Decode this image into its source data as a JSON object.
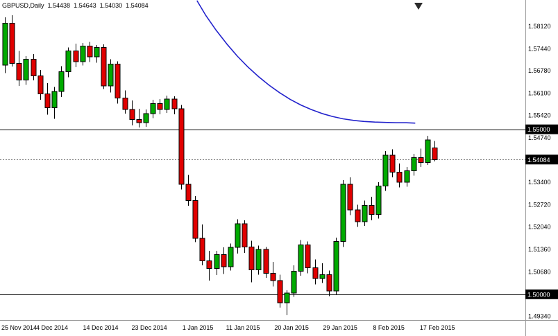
{
  "header": {
    "symbol_period": "GBPUSD,Daily",
    "open": "1.54438",
    "high": "1.54643",
    "low": "1.54030",
    "close": "1.54084"
  },
  "colors": {
    "up_candle": "#00AA00",
    "down_candle": "#E00000",
    "candle_border": "#000000",
    "moving_average": "#2222CC",
    "horizontal_line": "#000000",
    "current_price_line": "#808080",
    "badge_bg": "#000000",
    "badge_fg": "#FFFFFF",
    "axis_text": "#000000",
    "frame": "#9a9a9a",
    "background": "#FFFFFF"
  },
  "chart_data": {
    "type": "candlestick",
    "symbol": "GBPUSD",
    "timeframe": "Daily",
    "title": "GBPUSD,Daily",
    "grid": "off",
    "ylim": [
      1.4922,
      1.5892
    ],
    "y_axis_labels": [
      "1.58120",
      "1.57440",
      "1.56780",
      "1.56100",
      "1.55420",
      "1.54740",
      "1.54060",
      "1.53400",
      "1.52720",
      "1.52040",
      "1.51360",
      "1.50680",
      "1.50000",
      "1.49340"
    ],
    "x_axis_labels": [
      {
        "text": "25 Nov 2014",
        "i": 0
      },
      {
        "text": "4 Dec 2014",
        "i": 6.7
      },
      {
        "text": "14 Dec 2014",
        "i": 13.6
      },
      {
        "text": "23 Dec 2014",
        "i": 20.5
      },
      {
        "text": "1 Jan 2015",
        "i": 27.4
      },
      {
        "text": "11 Jan 2015",
        "i": 33.8
      },
      {
        "text": "20 Jan 2015",
        "i": 40.7
      },
      {
        "text": "29 Jan 2015",
        "i": 47.6
      },
      {
        "text": "8 Feb 2015",
        "i": 54.5
      },
      {
        "text": "17 Feb 2015",
        "i": 61.4
      }
    ],
    "horizontal_lines": [
      {
        "price": 1.55,
        "label": "1.55000"
      },
      {
        "price": 1.5,
        "label": "1.50000"
      }
    ],
    "current_price_line": {
      "price": 1.54084,
      "label": "1.54084"
    },
    "quote": {
      "open": 1.54438,
      "high": 1.54643,
      "low": 1.5403,
      "close": 1.54084
    },
    "moving_average": {
      "points": [
        [
          27.3,
          1.5889
        ],
        [
          28.5,
          1.5846
        ],
        [
          30,
          1.58
        ],
        [
          31.5,
          1.5759
        ],
        [
          33,
          1.5722
        ],
        [
          34.5,
          1.5689
        ],
        [
          36,
          1.566
        ],
        [
          37.5,
          1.5634
        ],
        [
          39,
          1.5611
        ],
        [
          40.5,
          1.5591
        ],
        [
          42,
          1.5574
        ],
        [
          43.5,
          1.556
        ],
        [
          45,
          1.5548
        ],
        [
          46.5,
          1.5539
        ],
        [
          48,
          1.5532
        ],
        [
          49.5,
          1.5527
        ],
        [
          51,
          1.5524
        ],
        [
          52.5,
          1.5522
        ],
        [
          54,
          1.5521
        ],
        [
          55.5,
          1.552
        ],
        [
          57,
          1.552
        ],
        [
          58.2,
          1.5519
        ]
      ]
    },
    "candles_format": [
      "date",
      "open",
      "high",
      "low",
      "close"
    ],
    "candles": [
      [
        "25 Nov 2014",
        1.5695,
        1.584,
        1.567,
        1.5822
      ],
      [
        "26 Nov 2014",
        1.5822,
        1.5846,
        1.569,
        1.57
      ],
      [
        "27 Nov 2014",
        1.57,
        1.5738,
        1.5632,
        1.565
      ],
      [
        "28 Nov 2014",
        1.565,
        1.5722,
        1.5635,
        1.5712
      ],
      [
        "1 Dec 2014",
        1.5712,
        1.5728,
        1.5648,
        1.5662
      ],
      [
        "2 Dec 2014",
        1.5662,
        1.568,
        1.559,
        1.5608
      ],
      [
        "3 Dec 2014",
        1.5608,
        1.564,
        1.5545,
        1.5565
      ],
      [
        "4 Dec 2014",
        1.5565,
        1.5628,
        1.5532,
        1.5615
      ],
      [
        "5 Dec 2014",
        1.5615,
        1.5692,
        1.5598,
        1.5675
      ],
      [
        "8 Dec 2014",
        1.5675,
        1.5748,
        1.5658,
        1.5738
      ],
      [
        "9 Dec 2014",
        1.5738,
        1.576,
        1.5688,
        1.5705
      ],
      [
        "10 Dec 2014",
        1.5705,
        1.5762,
        1.5694,
        1.5752
      ],
      [
        "11 Dec 2014",
        1.5752,
        1.5765,
        1.5704,
        1.572
      ],
      [
        "12 Dec 2014",
        1.572,
        1.5756,
        1.5702,
        1.5748
      ],
      [
        "15 Dec 2014",
        1.5748,
        1.5758,
        1.5622,
        1.5632
      ],
      [
        "16 Dec 2014",
        1.5632,
        1.5712,
        1.5612,
        1.5698
      ],
      [
        "17 Dec 2014",
        1.5698,
        1.5706,
        1.5578,
        1.5595
      ],
      [
        "18 Dec 2014",
        1.5595,
        1.5618,
        1.5548,
        1.556
      ],
      [
        "19 Dec 2014",
        1.556,
        1.5588,
        1.5512,
        1.553
      ],
      [
        "22 Dec 2014",
        1.553,
        1.5562,
        1.5506,
        1.552
      ],
      [
        "23 Dec 2014",
        1.552,
        1.556,
        1.5508,
        1.5548
      ],
      [
        "24 Dec 2014",
        1.5548,
        1.559,
        1.5534,
        1.5578
      ],
      [
        "25 Dec 2014",
        1.5578,
        1.5592,
        1.5546,
        1.556
      ],
      [
        "26 Dec 2014",
        1.556,
        1.5602,
        1.555,
        1.5592
      ],
      [
        "29 Dec 2014",
        1.5592,
        1.56,
        1.5546,
        1.5562
      ],
      [
        "30 Dec 2014",
        1.5562,
        1.5574,
        1.5318,
        1.5334
      ],
      [
        "31 Dec 2014",
        1.5334,
        1.5362,
        1.5268,
        1.5284
      ],
      [
        "1 Jan 2015",
        1.5284,
        1.5298,
        1.5158,
        1.517
      ],
      [
        "2 Jan 2015",
        1.517,
        1.5212,
        1.5088,
        1.5102
      ],
      [
        "5 Jan 2015",
        1.5102,
        1.5132,
        1.5042,
        1.5078
      ],
      [
        "6 Jan 2015",
        1.5078,
        1.5132,
        1.5058,
        1.512
      ],
      [
        "7 Jan 2015",
        1.512,
        1.5142,
        1.5062,
        1.5084
      ],
      [
        "8 Jan 2015",
        1.5084,
        1.5154,
        1.5072,
        1.5142
      ],
      [
        "9 Jan 2015",
        1.5142,
        1.5228,
        1.5124,
        1.5214
      ],
      [
        "12 Jan 2015",
        1.5214,
        1.5224,
        1.5126,
        1.5144
      ],
      [
        "13 Jan 2015",
        1.5144,
        1.5162,
        1.5036,
        1.5074
      ],
      [
        "14 Jan 2015",
        1.5074,
        1.5148,
        1.506,
        1.5136
      ],
      [
        "15 Jan 2015",
        1.5136,
        1.5144,
        1.505,
        1.5064
      ],
      [
        "16 Jan 2015",
        1.5064,
        1.5098,
        1.5024,
        1.5042
      ],
      [
        "19 Jan 2015",
        1.5042,
        1.506,
        1.496,
        1.4974
      ],
      [
        "20 Jan 2015",
        1.4974,
        1.5012,
        1.4937,
        1.5004
      ],
      [
        "21 Jan 2015",
        1.5004,
        1.5088,
        1.4992,
        1.507
      ],
      [
        "22 Jan 2015",
        1.507,
        1.5164,
        1.5056,
        1.515
      ],
      [
        "23 Jan 2015",
        1.515,
        1.516,
        1.5064,
        1.508
      ],
      [
        "26 Jan 2015",
        1.508,
        1.5106,
        1.503,
        1.5048
      ],
      [
        "27 Jan 2015",
        1.5048,
        1.5094,
        1.5034,
        1.506
      ],
      [
        "28 Jan 2015",
        1.506,
        1.5072,
        1.4994,
        1.501
      ],
      [
        "29 Jan 2015",
        1.501,
        1.5172,
        1.5,
        1.516
      ],
      [
        "30 Jan 2015",
        1.516,
        1.5346,
        1.5144,
        1.5334
      ],
      [
        "2 Feb 2015",
        1.5334,
        1.5354,
        1.524,
        1.5256
      ],
      [
        "3 Feb 2015",
        1.5256,
        1.5272,
        1.5204,
        1.522
      ],
      [
        "4 Feb 2015",
        1.522,
        1.5284,
        1.5208,
        1.527
      ],
      [
        "5 Feb 2015",
        1.527,
        1.5296,
        1.5224,
        1.5242
      ],
      [
        "6 Feb 2015",
        1.5242,
        1.534,
        1.523,
        1.5328
      ],
      [
        "9 Feb 2015",
        1.5328,
        1.5434,
        1.5314,
        1.5422
      ],
      [
        "10 Feb 2015",
        1.5422,
        1.544,
        1.5354,
        1.537
      ],
      [
        "11 Feb 2015",
        1.537,
        1.5396,
        1.5324,
        1.534
      ],
      [
        "12 Feb 2015",
        1.534,
        1.5386,
        1.5326,
        1.5374
      ],
      [
        "13 Feb 2015",
        1.5374,
        1.5426,
        1.536,
        1.5414
      ],
      [
        "16 Feb 2015",
        1.5414,
        1.5442,
        1.5386,
        1.54
      ],
      [
        "17 Feb 2015",
        1.54,
        1.5481,
        1.5392,
        1.5468
      ],
      [
        "18 Feb 2015",
        1.54438,
        1.54643,
        1.5403,
        1.54084
      ]
    ]
  }
}
